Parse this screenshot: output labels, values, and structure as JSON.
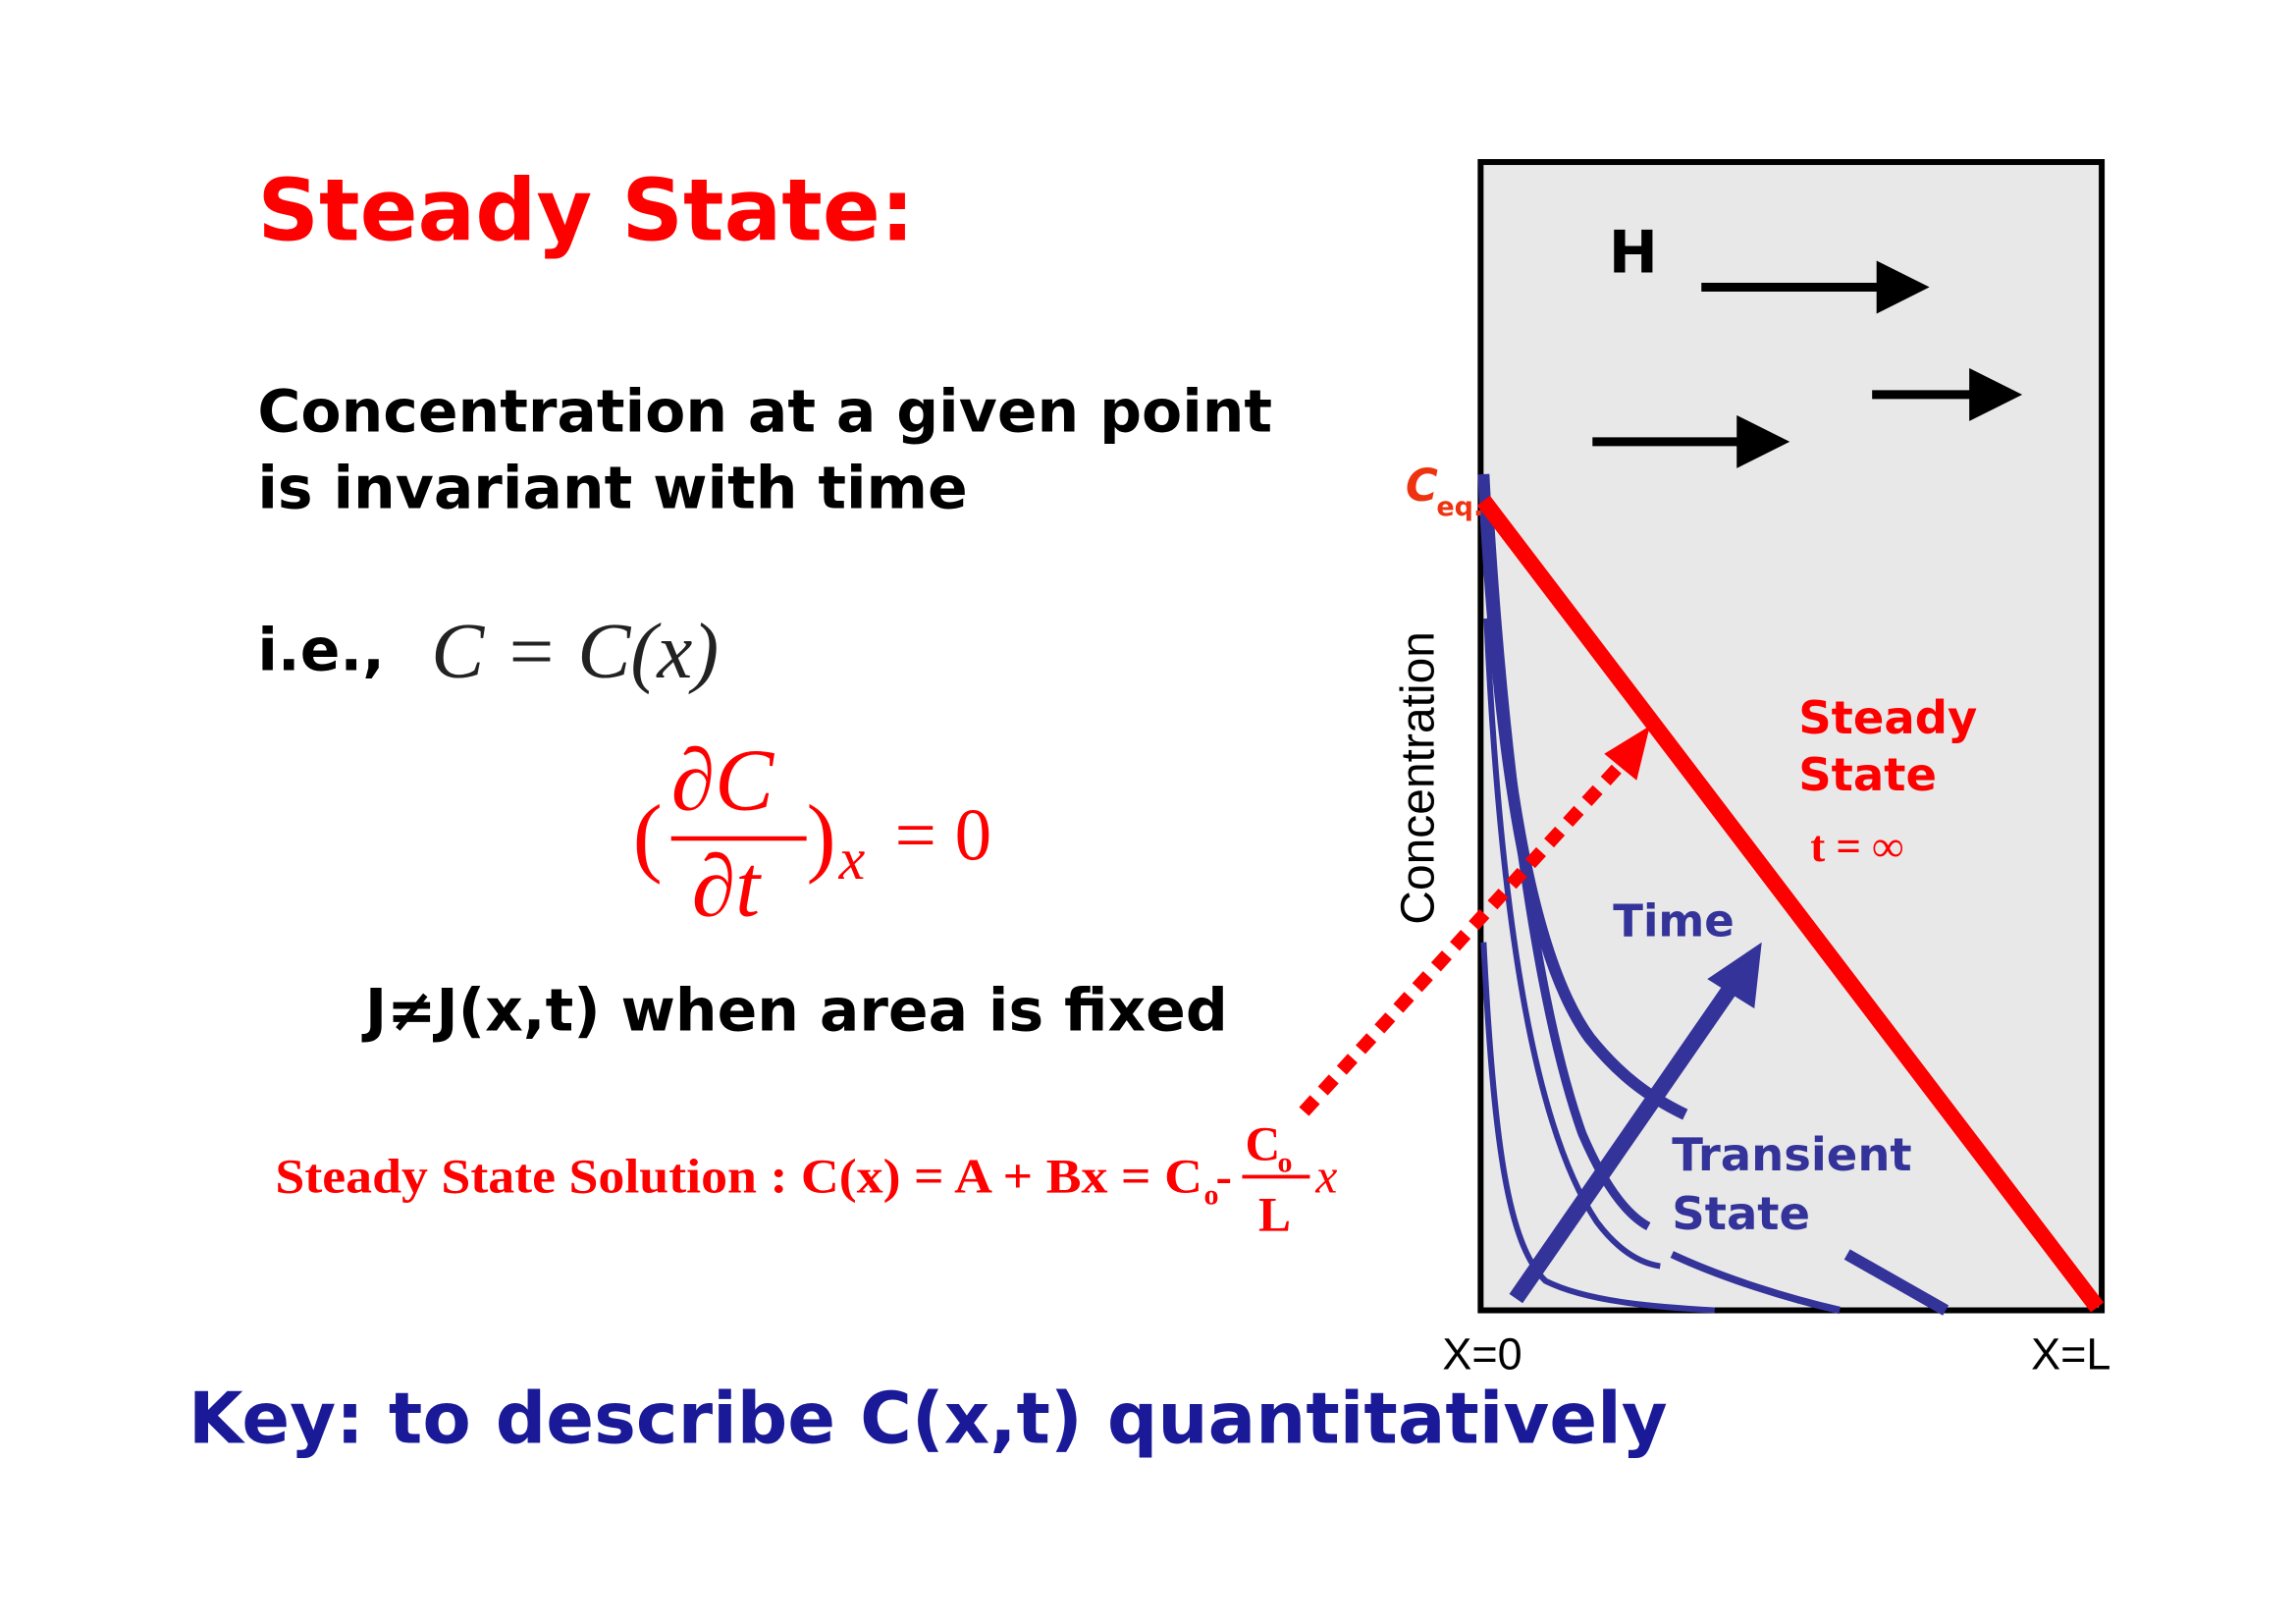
{
  "title": "Steady State:",
  "description": {
    "line1": "Concentration at a given point",
    "line2": "is invariant with time"
  },
  "ie": {
    "prefix": "i.e.,",
    "equation": "C = C(x)"
  },
  "partial_equation": {
    "open": "(",
    "numerator": "∂C",
    "denominator": "∂t",
    "close": ")",
    "subscript": "x",
    "rhs": "= 0"
  },
  "flux_statement": "J≠J(x,t) when area is fixed",
  "solution": {
    "label": "Steady State Solution : C(x) = A + Bx = C",
    "sub": "o",
    "minus": " -",
    "frac_num": "C",
    "frac_num_sub": "o",
    "frac_den": "L",
    "tail": "x"
  },
  "key": "Key: to describe C(x,t) quantitatively",
  "diagram": {
    "h_label": "H",
    "ceq_label": "C",
    "ceq_sub": "eq.",
    "y_axis_label": "Concentration",
    "steady_label_1": "Steady",
    "steady_label_2": "State",
    "t_infinity": "t = ∞",
    "time_label": "Time",
    "transient_label_1": "Transient",
    "transient_label_2": "State",
    "x0_label": "X=0",
    "xl_label": "X=L",
    "colors": {
      "red": "#ff0000",
      "blue": "#33339a",
      "dark_blue": "#1a1a99",
      "box_fill": "#e8e8e8"
    }
  }
}
